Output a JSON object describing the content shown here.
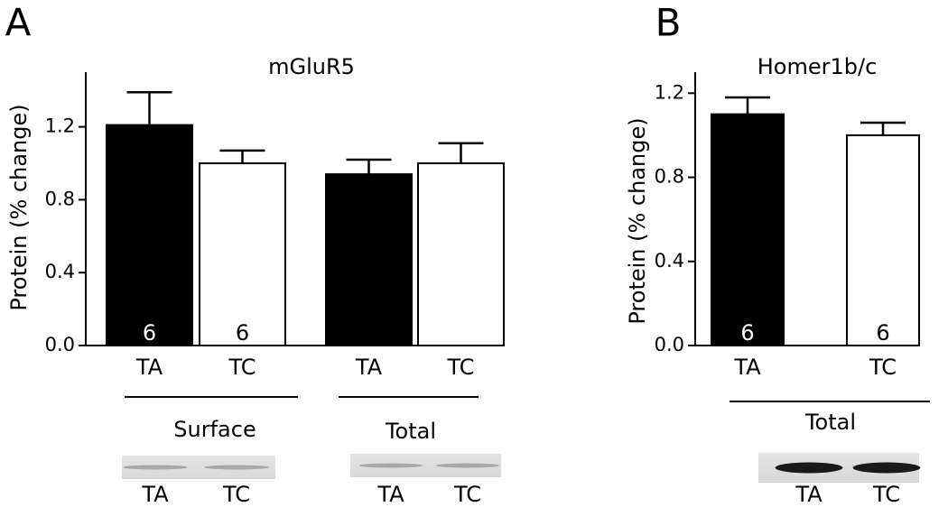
{
  "chart_data": [
    {
      "type": "bar",
      "panel_label": "A",
      "title": "mGluR5",
      "y_label": "Protein (% change)",
      "categories": [
        "TA",
        "TC",
        "TA",
        "TC"
      ],
      "values": [
        1.21,
        1.0,
        0.94,
        1.0
      ],
      "errors": [
        0.18,
        0.07,
        0.08,
        0.11
      ],
      "n": [
        6,
        6,
        null,
        null
      ],
      "colors": [
        "#000000",
        "#ffffff",
        "#000000",
        "#ffffff"
      ],
      "groups": [
        "Surface",
        "Total"
      ],
      "blot_labels": [
        [
          "TA",
          "TC"
        ],
        [
          "TA",
          "TC"
        ]
      ],
      "ylim": [
        0,
        1.5
      ],
      "yticks": [
        {
          "value": 0,
          "label": "0.0"
        },
        0.4,
        0.8,
        1.2
      ]
    },
    {
      "type": "bar",
      "panel_label": "B",
      "title": "Homer1b/c",
      "y_label": "Protein (% change)",
      "categories": [
        "TA",
        "TC"
      ],
      "values": [
        1.1,
        1.0
      ],
      "errors": [
        0.08,
        0.06
      ],
      "n": [
        6,
        6
      ],
      "colors": [
        "#000000",
        "#ffffff"
      ],
      "groups": [
        "Total"
      ],
      "blot_labels": [
        [
          "TA",
          "TC"
        ]
      ],
      "ylim": [
        0,
        1.3
      ],
      "yticks": [
        {
          "value": 0,
          "label": "0.0"
        },
        0.4,
        0.8,
        1.2
      ]
    }
  ]
}
